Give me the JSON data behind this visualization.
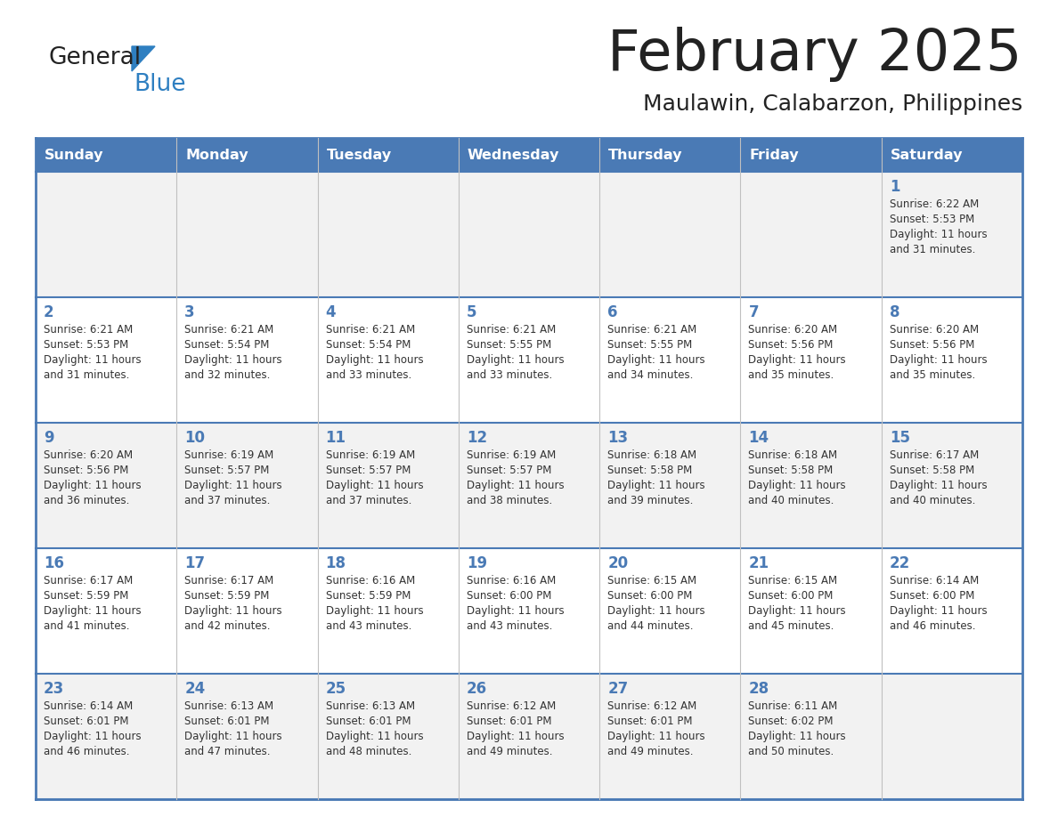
{
  "title": "February 2025",
  "subtitle": "Maulawin, Calabarzon, Philippines",
  "header_bg": "#4a7ab5",
  "header_text": "#ffffff",
  "cell_bg_odd": "#f2f2f2",
  "cell_bg_even": "#ffffff",
  "border_color": "#4a7ab5",
  "border_color_light": "#c0c0c0",
  "day_headers": [
    "Sunday",
    "Monday",
    "Tuesday",
    "Wednesday",
    "Thursday",
    "Friday",
    "Saturday"
  ],
  "title_color": "#222222",
  "subtitle_color": "#222222",
  "day_num_color": "#4a7ab5",
  "text_color": "#333333",
  "logo_general_color": "#222222",
  "logo_blue_color": "#2e7fc1",
  "logo_triangle_color": "#2e7fc1",
  "days": [
    {
      "day": 1,
      "col": 6,
      "row": 0,
      "sunrise": "6:22 AM",
      "sunset": "5:53 PM",
      "daylight": "11 hours and 31 minutes."
    },
    {
      "day": 2,
      "col": 0,
      "row": 1,
      "sunrise": "6:21 AM",
      "sunset": "5:53 PM",
      "daylight": "11 hours and 31 minutes."
    },
    {
      "day": 3,
      "col": 1,
      "row": 1,
      "sunrise": "6:21 AM",
      "sunset": "5:54 PM",
      "daylight": "11 hours and 32 minutes."
    },
    {
      "day": 4,
      "col": 2,
      "row": 1,
      "sunrise": "6:21 AM",
      "sunset": "5:54 PM",
      "daylight": "11 hours and 33 minutes."
    },
    {
      "day": 5,
      "col": 3,
      "row": 1,
      "sunrise": "6:21 AM",
      "sunset": "5:55 PM",
      "daylight": "11 hours and 33 minutes."
    },
    {
      "day": 6,
      "col": 4,
      "row": 1,
      "sunrise": "6:21 AM",
      "sunset": "5:55 PM",
      "daylight": "11 hours and 34 minutes."
    },
    {
      "day": 7,
      "col": 5,
      "row": 1,
      "sunrise": "6:20 AM",
      "sunset": "5:56 PM",
      "daylight": "11 hours and 35 minutes."
    },
    {
      "day": 8,
      "col": 6,
      "row": 1,
      "sunrise": "6:20 AM",
      "sunset": "5:56 PM",
      "daylight": "11 hours and 35 minutes."
    },
    {
      "day": 9,
      "col": 0,
      "row": 2,
      "sunrise": "6:20 AM",
      "sunset": "5:56 PM",
      "daylight": "11 hours and 36 minutes."
    },
    {
      "day": 10,
      "col": 1,
      "row": 2,
      "sunrise": "6:19 AM",
      "sunset": "5:57 PM",
      "daylight": "11 hours and 37 minutes."
    },
    {
      "day": 11,
      "col": 2,
      "row": 2,
      "sunrise": "6:19 AM",
      "sunset": "5:57 PM",
      "daylight": "11 hours and 37 minutes."
    },
    {
      "day": 12,
      "col": 3,
      "row": 2,
      "sunrise": "6:19 AM",
      "sunset": "5:57 PM",
      "daylight": "11 hours and 38 minutes."
    },
    {
      "day": 13,
      "col": 4,
      "row": 2,
      "sunrise": "6:18 AM",
      "sunset": "5:58 PM",
      "daylight": "11 hours and 39 minutes."
    },
    {
      "day": 14,
      "col": 5,
      "row": 2,
      "sunrise": "6:18 AM",
      "sunset": "5:58 PM",
      "daylight": "11 hours and 40 minutes."
    },
    {
      "day": 15,
      "col": 6,
      "row": 2,
      "sunrise": "6:17 AM",
      "sunset": "5:58 PM",
      "daylight": "11 hours and 40 minutes."
    },
    {
      "day": 16,
      "col": 0,
      "row": 3,
      "sunrise": "6:17 AM",
      "sunset": "5:59 PM",
      "daylight": "11 hours and 41 minutes."
    },
    {
      "day": 17,
      "col": 1,
      "row": 3,
      "sunrise": "6:17 AM",
      "sunset": "5:59 PM",
      "daylight": "11 hours and 42 minutes."
    },
    {
      "day": 18,
      "col": 2,
      "row": 3,
      "sunrise": "6:16 AM",
      "sunset": "5:59 PM",
      "daylight": "11 hours and 43 minutes."
    },
    {
      "day": 19,
      "col": 3,
      "row": 3,
      "sunrise": "6:16 AM",
      "sunset": "6:00 PM",
      "daylight": "11 hours and 43 minutes."
    },
    {
      "day": 20,
      "col": 4,
      "row": 3,
      "sunrise": "6:15 AM",
      "sunset": "6:00 PM",
      "daylight": "11 hours and 44 minutes."
    },
    {
      "day": 21,
      "col": 5,
      "row": 3,
      "sunrise": "6:15 AM",
      "sunset": "6:00 PM",
      "daylight": "11 hours and 45 minutes."
    },
    {
      "day": 22,
      "col": 6,
      "row": 3,
      "sunrise": "6:14 AM",
      "sunset": "6:00 PM",
      "daylight": "11 hours and 46 minutes."
    },
    {
      "day": 23,
      "col": 0,
      "row": 4,
      "sunrise": "6:14 AM",
      "sunset": "6:01 PM",
      "daylight": "11 hours and 46 minutes."
    },
    {
      "day": 24,
      "col": 1,
      "row": 4,
      "sunrise": "6:13 AM",
      "sunset": "6:01 PM",
      "daylight": "11 hours and 47 minutes."
    },
    {
      "day": 25,
      "col": 2,
      "row": 4,
      "sunrise": "6:13 AM",
      "sunset": "6:01 PM",
      "daylight": "11 hours and 48 minutes."
    },
    {
      "day": 26,
      "col": 3,
      "row": 4,
      "sunrise": "6:12 AM",
      "sunset": "6:01 PM",
      "daylight": "11 hours and 49 minutes."
    },
    {
      "day": 27,
      "col": 4,
      "row": 4,
      "sunrise": "6:12 AM",
      "sunset": "6:01 PM",
      "daylight": "11 hours and 49 minutes."
    },
    {
      "day": 28,
      "col": 5,
      "row": 4,
      "sunrise": "6:11 AM",
      "sunset": "6:02 PM",
      "daylight": "11 hours and 50 minutes."
    }
  ]
}
